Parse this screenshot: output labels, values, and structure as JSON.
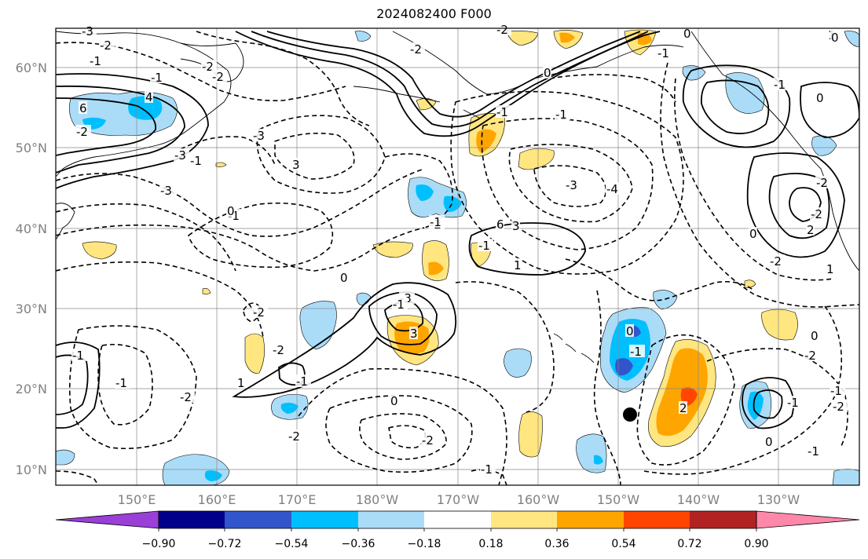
{
  "title": "2024082400 F000",
  "axes": {
    "lat_labels": [
      "10°N",
      "20°N",
      "30°N",
      "40°N",
      "50°N",
      "60°N"
    ],
    "lon_labels": [
      "150°E",
      "160°E",
      "170°E",
      "180°W",
      "170°W",
      "160°W",
      "150°W",
      "140°W",
      "130°W"
    ]
  },
  "colorbar": {
    "ticks": [
      "−0.90",
      "−0.72",
      "−0.54",
      "−0.36",
      "−0.18",
      "0.18",
      "0.36",
      "0.54",
      "0.72",
      "0.90"
    ],
    "colors": [
      "#9a3fd8",
      "#00008b",
      "#3355cc",
      "#00bfff",
      "#aadcf8",
      "#ffffff",
      "#ffe680",
      "#ffa500",
      "#ff4500",
      "#b22222",
      "#ff88aa"
    ]
  },
  "contour_labels": [
    "-3",
    "-2",
    "-1",
    "4",
    "6",
    "-2",
    "-1",
    "-2",
    "-3",
    "3",
    "-1",
    "-1",
    "-3",
    "-3",
    "-4",
    "0",
    "-2",
    "0",
    "-1",
    "-1",
    "-1",
    "-2",
    "0",
    "-2",
    "0",
    "-1",
    "-2",
    "0",
    "-1",
    "0",
    "1",
    "-2",
    "-2",
    "1",
    "-2",
    "-2",
    "-3",
    "-1",
    "-1",
    "3",
    "-1",
    "0",
    "-1",
    "0",
    "-2",
    "1",
    "-1",
    "-1",
    "-2",
    "-2",
    "-1",
    "-1",
    "0",
    "-2",
    "0",
    "2",
    "2",
    "-1",
    "-2",
    "0",
    "1",
    "3",
    "6",
    "-1",
    "-3",
    "-2"
  ],
  "marker": "storm-center"
}
